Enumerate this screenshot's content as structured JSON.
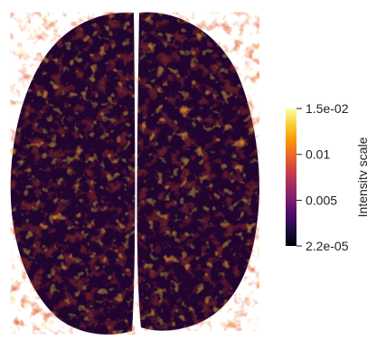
{
  "chart_data": {
    "type": "heatmap",
    "title": "",
    "colormap": "inferno",
    "scalar_range": [
      2.2e-05,
      0.015
    ],
    "colorbar": {
      "title": "Intensity scale",
      "tick_labels": [
        "1.5e-02",
        "0.01",
        "0.005",
        "2.2e-05"
      ],
      "tick_values": [
        0.015,
        0.01,
        0.005,
        2.2e-05
      ],
      "colors": [
        "#000004",
        "#1b0c41",
        "#4a0c6b",
        "#781c6d",
        "#a52c60",
        "#cf4446",
        "#ed6925",
        "#fb9b06",
        "#f7d13d",
        "#fcffa4"
      ]
    }
  }
}
